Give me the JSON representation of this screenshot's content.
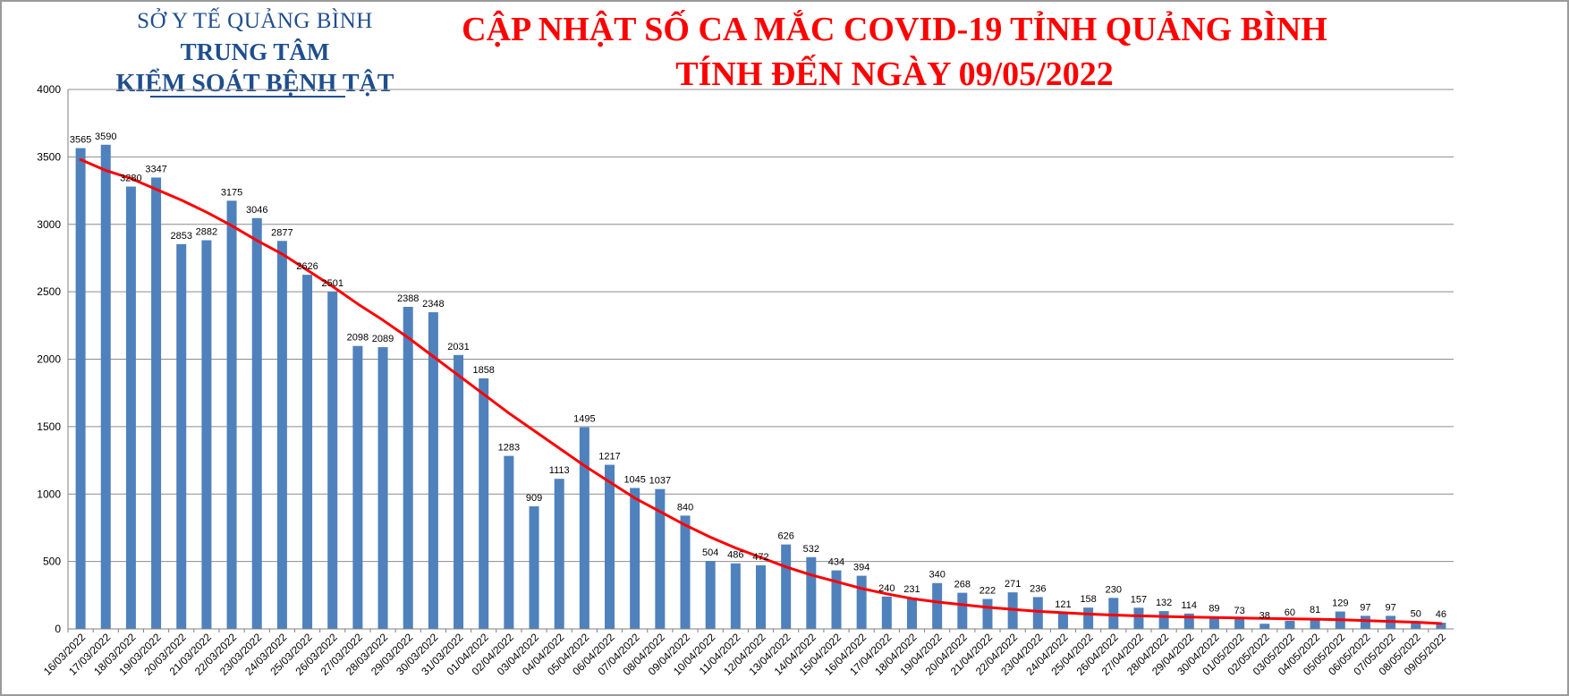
{
  "header": {
    "org_line1": "SỞ Y TẾ QUẢNG BÌNH",
    "org_line2": "TRUNG TÂM",
    "org_line3": "KIỂM SOÁT BỆNH TẬT",
    "title_line1": "CẬP NHẬT SỐ CA MẮC COVID-19 TỈNH QUẢNG BÌNH",
    "title_line2": "TÍNH ĐẾN NGÀY 09/05/2022"
  },
  "colors": {
    "bar": "#4f81bd",
    "trend": "#ff0000",
    "grid": "#8c8c8c",
    "title": "#ff0000",
    "org": "#1f4e8c"
  },
  "chart_data": {
    "type": "bar",
    "title": "CẬP NHẬT SỐ CA MẮC COVID-19 TỈNH QUẢNG BÌNH",
    "subtitle": "TÍNH ĐẾN NGÀY 09/05/2022",
    "xlabel": "",
    "ylabel": "",
    "ylim": [
      0,
      4000
    ],
    "yticks": [
      0,
      500,
      1000,
      1500,
      2000,
      2500,
      3000,
      3500,
      4000
    ],
    "grid": true,
    "legend": "none",
    "categories": [
      "16/03/2022",
      "17/03/2022",
      "18/03/2022",
      "19/03/2022",
      "20/03/2022",
      "21/03/2022",
      "22/03/2022",
      "23/03/2022",
      "24/03/2022",
      "25/03/2022",
      "26/03/2022",
      "27/03/2022",
      "28/03/2022",
      "29/03/2022",
      "30/03/2022",
      "31/03/2022",
      "01/04/2022",
      "02/04/2022",
      "03/04/2022",
      "04/04/2022",
      "05/04/2022",
      "06/04/2022",
      "07/04/2022",
      "08/04/2022",
      "09/04/2022",
      "10/04/2022",
      "11/04/2022",
      "12/04/2022",
      "13/04/2022",
      "14/04/2022",
      "15/04/2022",
      "16/04/2022",
      "17/04/2022",
      "18/04/2022",
      "19/04/2022",
      "20/04/2022",
      "21/04/2022",
      "22/04/2022",
      "23/04/2022",
      "24/04/2022",
      "25/04/2022",
      "26/04/2022",
      "27/04/2022",
      "28/04/2022",
      "29/04/2022",
      "30/04/2022",
      "01/05/2022",
      "02/05/2022",
      "03/05/2022",
      "04/05/2022",
      "05/05/2022",
      "06/05/2022",
      "07/05/2022",
      "08/05/2022",
      "09/05/2022"
    ],
    "values": [
      3565,
      3590,
      3280,
      3347,
      2853,
      2882,
      3175,
      3046,
      2877,
      2626,
      2501,
      2098,
      2089,
      2388,
      2348,
      2031,
      1858,
      1283,
      909,
      1113,
      1495,
      1217,
      1045,
      1037,
      840,
      504,
      486,
      472,
      626,
      532,
      434,
      394,
      240,
      231,
      340,
      268,
      222,
      271,
      236,
      121,
      158,
      230,
      157,
      132,
      114,
      89,
      73,
      38,
      60,
      81,
      129,
      97,
      97,
      50,
      46
    ],
    "data_labels": [
      "3565",
      "3590",
      "3280",
      "3347",
      "2853",
      "2882",
      "3175",
      "3046",
      "2877",
      "2626",
      "2501",
      "2098",
      "2089",
      "2388",
      "2348",
      "2031",
      "1858",
      "1283",
      "909",
      "1113",
      "1495",
      "1217",
      "1045",
      "1037",
      "840",
      "504",
      "486",
      "472",
      "626",
      "532",
      "434",
      "394",
      "240",
      "231",
      "340",
      "268",
      "222",
      "271",
      "236",
      "121",
      "158",
      "230",
      "157",
      "132",
      "114",
      "89",
      "73",
      "38",
      "60",
      "81",
      "129",
      "97",
      "97",
      "50",
      "46"
    ],
    "trendline": {
      "type": "polynomial",
      "values": [
        3480,
        3400,
        3340,
        3260,
        3180,
        3090,
        2990,
        2880,
        2780,
        2660,
        2540,
        2410,
        2290,
        2160,
        2020,
        1880,
        1740,
        1600,
        1470,
        1340,
        1210,
        1090,
        970,
        870,
        770,
        680,
        600,
        530,
        460,
        400,
        350,
        300,
        260,
        225,
        200,
        180,
        160,
        145,
        130,
        120,
        110,
        103,
        97,
        92,
        88,
        84,
        81,
        78,
        75,
        72,
        68,
        62,
        56,
        50,
        40
      ]
    }
  }
}
